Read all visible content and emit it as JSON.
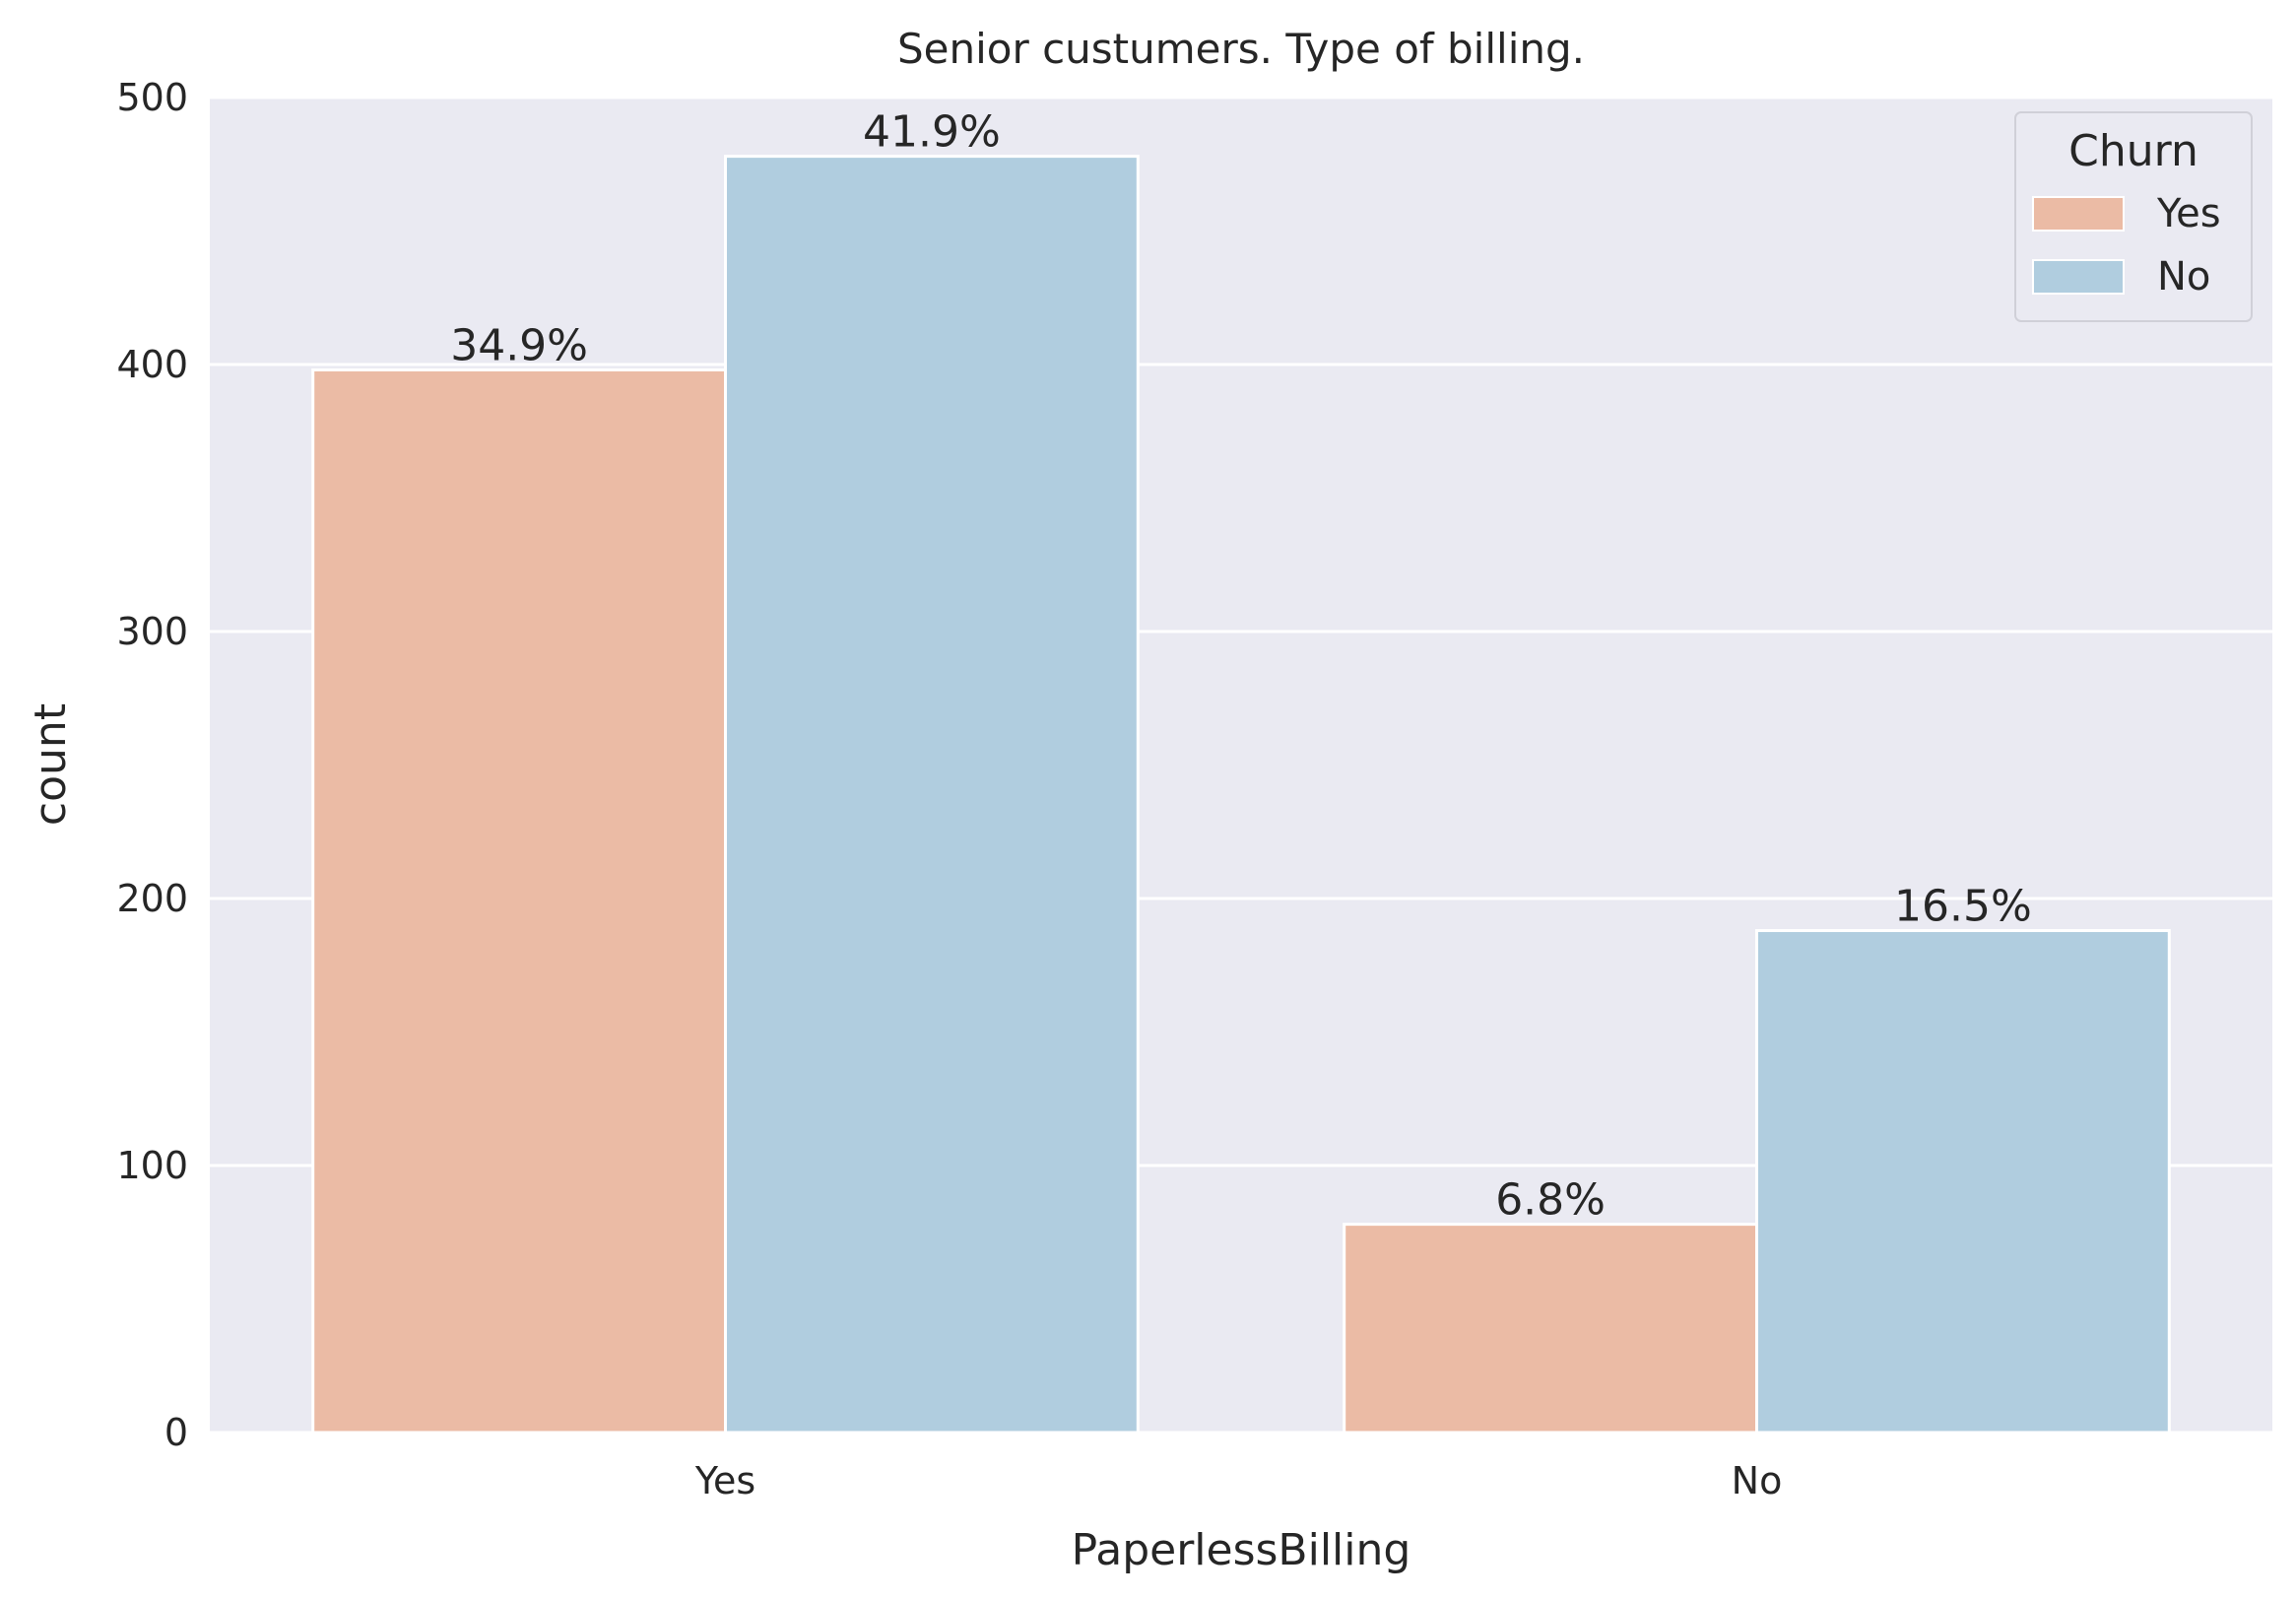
{
  "chart_data": {
    "type": "bar",
    "title": "Senior custumers. Type of billing.",
    "xlabel": "PaperlessBilling",
    "ylabel": "count",
    "categories": [
      "Yes",
      "No"
    ],
    "ylim": [
      0,
      500
    ],
    "yticks": [
      0,
      100,
      200,
      300,
      400,
      500
    ],
    "grid": true,
    "legend": {
      "title": "Churn",
      "placement": "top-right",
      "entries": [
        "Yes",
        "No"
      ]
    },
    "series": [
      {
        "name": "Yes",
        "color": "#ebbba5",
        "values": [
          398,
          78
        ],
        "labels": [
          "34.9%",
          "6.8%"
        ]
      },
      {
        "name": "No",
        "color": "#b0cddf",
        "values": [
          478,
          188
        ],
        "labels": [
          "41.9%",
          "16.5%"
        ]
      }
    ],
    "colors": {
      "plot_background": "#eaeaf2",
      "grid": "#ffffff"
    }
  }
}
